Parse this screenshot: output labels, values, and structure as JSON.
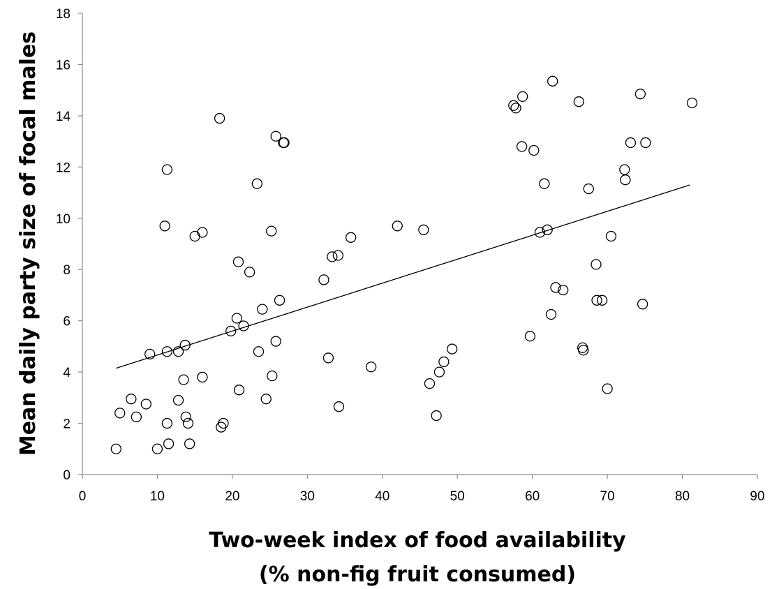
{
  "chart_data": {
    "type": "scatter",
    "title": "",
    "xlabel_lines": [
      "Two-week index of food availability",
      "(% non-fig fruit consumed)"
    ],
    "ylabel": "Mean daily party size of focal males",
    "xlim": [
      0,
      90
    ],
    "ylim": [
      0,
      18
    ],
    "xticks": [
      "0",
      "10",
      "20",
      "30",
      "40",
      "50",
      "60",
      "70",
      "80",
      "90"
    ],
    "yticks": [
      "0",
      "2",
      "4",
      "6",
      "8",
      "10",
      "12",
      "14",
      "16",
      "18"
    ],
    "grid": false,
    "legend": "none",
    "marker": "open-circle",
    "trendline": {
      "x": [
        4.5,
        81.0
      ],
      "y": [
        4.15,
        11.3
      ]
    },
    "points": [
      [
        4.5,
        1.0
      ],
      [
        5.0,
        2.4
      ],
      [
        6.5,
        2.95
      ],
      [
        7.2,
        2.25
      ],
      [
        8.5,
        2.75
      ],
      [
        9.0,
        4.7
      ],
      [
        10.0,
        1.0
      ],
      [
        11.0,
        9.7
      ],
      [
        11.3,
        11.9
      ],
      [
        11.3,
        4.8
      ],
      [
        11.3,
        2.0
      ],
      [
        11.5,
        1.2
      ],
      [
        12.8,
        4.8
      ],
      [
        12.8,
        2.9
      ],
      [
        13.5,
        3.7
      ],
      [
        13.7,
        5.05
      ],
      [
        13.8,
        2.25
      ],
      [
        14.1,
        2.0
      ],
      [
        14.3,
        1.2
      ],
      [
        15.0,
        9.3
      ],
      [
        16.0,
        9.45
      ],
      [
        16.0,
        3.8
      ],
      [
        18.3,
        13.9
      ],
      [
        18.5,
        1.85
      ],
      [
        18.8,
        2.0
      ],
      [
        19.8,
        5.6
      ],
      [
        20.6,
        6.1
      ],
      [
        20.8,
        8.3
      ],
      [
        20.9,
        3.3
      ],
      [
        21.5,
        5.8
      ],
      [
        22.3,
        7.9
      ],
      [
        23.3,
        11.35
      ],
      [
        23.5,
        4.8
      ],
      [
        24.0,
        6.45
      ],
      [
        24.5,
        2.95
      ],
      [
        25.2,
        9.5
      ],
      [
        25.3,
        3.85
      ],
      [
        25.8,
        13.2
      ],
      [
        25.8,
        5.2
      ],
      [
        26.3,
        6.8
      ],
      [
        26.8,
        12.95
      ],
      [
        26.9,
        12.95
      ],
      [
        32.2,
        7.6
      ],
      [
        32.8,
        4.55
      ],
      [
        33.3,
        8.5
      ],
      [
        34.1,
        8.55
      ],
      [
        34.2,
        2.65
      ],
      [
        35.8,
        9.25
      ],
      [
        38.5,
        4.2
      ],
      [
        42.0,
        9.7
      ],
      [
        45.5,
        9.55
      ],
      [
        46.3,
        3.55
      ],
      [
        47.2,
        2.3
      ],
      [
        47.6,
        4.0
      ],
      [
        48.2,
        4.4
      ],
      [
        49.3,
        4.9
      ],
      [
        57.5,
        14.4
      ],
      [
        57.8,
        14.3
      ],
      [
        58.6,
        12.8
      ],
      [
        58.7,
        14.75
      ],
      [
        59.7,
        5.4
      ],
      [
        60.2,
        12.65
      ],
      [
        61.0,
        9.45
      ],
      [
        61.6,
        11.35
      ],
      [
        62.0,
        9.55
      ],
      [
        62.5,
        6.25
      ],
      [
        62.7,
        15.35
      ],
      [
        63.1,
        7.3
      ],
      [
        64.1,
        7.2
      ],
      [
        66.2,
        14.55
      ],
      [
        66.7,
        4.95
      ],
      [
        66.8,
        4.85
      ],
      [
        67.5,
        11.15
      ],
      [
        68.5,
        8.2
      ],
      [
        68.6,
        6.8
      ],
      [
        69.3,
        6.8
      ],
      [
        70.0,
        3.35
      ],
      [
        70.5,
        9.3
      ],
      [
        72.3,
        11.9
      ],
      [
        72.4,
        11.5
      ],
      [
        73.1,
        12.95
      ],
      [
        74.4,
        14.85
      ],
      [
        74.7,
        6.65
      ],
      [
        75.1,
        12.95
      ],
      [
        81.3,
        14.5
      ]
    ]
  }
}
